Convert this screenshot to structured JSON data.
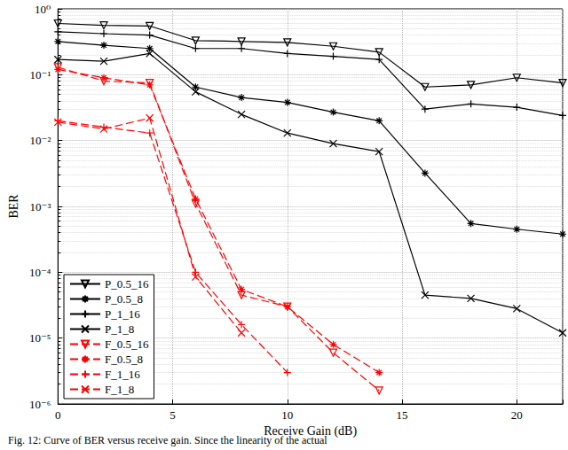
{
  "chart_data": {
    "type": "line",
    "caption": "Fig. 12: Curve of BER versus receive gain. Since the linearity of the actual",
    "x_label": "Receive Gain (dB)",
    "y_label": "BER",
    "log": "y",
    "grid": true,
    "legend": "lower left",
    "xlim": [
      0,
      22
    ],
    "xticks": [
      0,
      5,
      10,
      15,
      20
    ],
    "ylim": [
      1e-06,
      1
    ],
    "yticks": [
      {
        "value": 1e-06,
        "label": "10⁻⁶"
      },
      {
        "value": 1e-05,
        "label": "10⁻⁵"
      },
      {
        "value": 0.0001,
        "label": "10⁻⁴"
      },
      {
        "value": 0.001,
        "label": "10⁻³"
      },
      {
        "value": 0.01,
        "label": "10⁻²"
      },
      {
        "value": 0.1,
        "label": "10⁻¹"
      },
      {
        "value": 1,
        "label": "10⁰"
      }
    ],
    "x": [
      0,
      2,
      4,
      6,
      8,
      10,
      12,
      14,
      16,
      18,
      20,
      22
    ],
    "series": [
      {
        "name": "P_0.5_16",
        "color": "#000000",
        "marker": "triangle-down",
        "line_style": "solid",
        "values": [
          0.6,
          0.56,
          0.55,
          0.33,
          0.32,
          0.31,
          0.27,
          0.22,
          0.065,
          0.07,
          0.09,
          0.075
        ]
      },
      {
        "name": "P_0.5_8",
        "color": "#000000",
        "marker": "star",
        "line_style": "solid",
        "values": [
          0.32,
          0.28,
          0.25,
          0.065,
          0.045,
          0.038,
          0.027,
          0.02,
          0.0032,
          0.00055,
          0.00045,
          0.00038
        ]
      },
      {
        "name": "P_1_16",
        "color": "#000000",
        "marker": "plus",
        "line_style": "solid",
        "values": [
          0.45,
          0.42,
          0.4,
          0.25,
          0.25,
          0.21,
          0.19,
          0.17,
          0.03,
          0.036,
          0.032,
          0.024
        ]
      },
      {
        "name": "P_1_8",
        "color": "#000000",
        "marker": "x",
        "line_style": "solid",
        "values": [
          0.17,
          0.16,
          0.21,
          0.055,
          0.025,
          0.013,
          0.009,
          0.0068,
          4.5e-05,
          4e-05,
          2.8e-05,
          1.2e-05
        ]
      },
      {
        "name": "F_0.5_16",
        "color": "#ff0000",
        "marker": "triangle-down",
        "line_style": "dashed",
        "values": [
          0.13,
          0.08,
          0.075,
          0.0011,
          4.5e-05,
          3e-05,
          6e-06,
          1.6e-06,
          null,
          null,
          null,
          null
        ]
      },
      {
        "name": "F_0.5_8",
        "color": "#ff0000",
        "marker": "star",
        "line_style": "dashed",
        "values": [
          0.12,
          0.09,
          0.07,
          0.0013,
          5.5e-05,
          3e-05,
          8e-06,
          3e-06,
          null,
          null,
          null,
          null
        ]
      },
      {
        "name": "F_1_16",
        "color": "#ff0000",
        "marker": "plus",
        "line_style": "dashed",
        "values": [
          0.02,
          0.016,
          0.013,
          0.0001,
          1.6e-05,
          3e-06,
          null,
          null,
          null,
          null,
          null,
          null
        ]
      },
      {
        "name": "F_1_8",
        "color": "#ff0000",
        "marker": "x",
        "line_style": "dashed",
        "values": [
          0.019,
          0.015,
          0.022,
          8.5e-05,
          1.2e-05,
          null,
          null,
          null,
          null,
          null,
          null,
          null
        ]
      }
    ]
  }
}
